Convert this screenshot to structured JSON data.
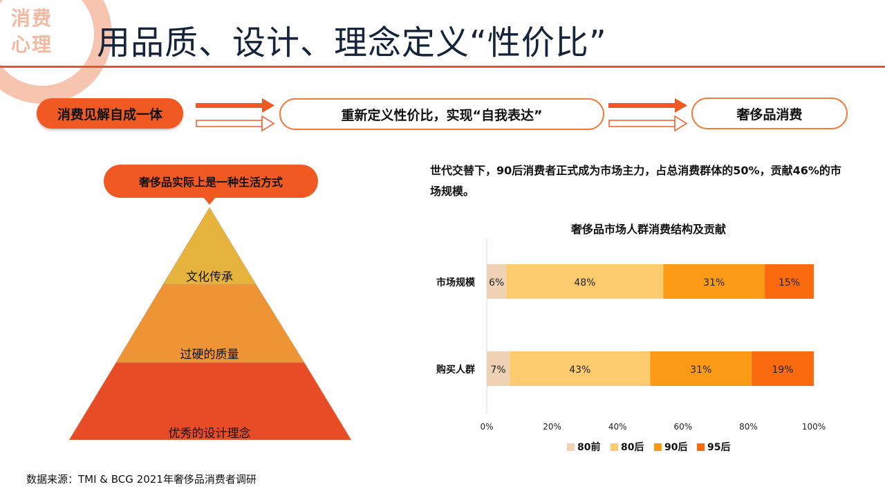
{
  "corner_badge": [
    "消费",
    "心理"
  ],
  "title": "用品质、设计、理念定义“性价比”",
  "flow": {
    "step1": "消费见解自成一体",
    "step2": "重新定义性价比，实现“自我表达”",
    "step3": "奢侈品消费"
  },
  "pyramid": {
    "bubble": "奢侈品实际上是一种生活方式",
    "layers": [
      "文化传承",
      "过硬的质量",
      "优秀的设计理念"
    ]
  },
  "description": "世代交替下，90后消费者正式成为市场主力，占总消费群体的50%，贡献46%的市场规模。",
  "source": "数据来源：TMI & BCG 2021年奢侈品消费者调研",
  "colors": {
    "accent": "#f05a22",
    "pyramid": [
      "#e6b43c",
      "#ef9434",
      "#e84c27"
    ],
    "series": [
      "#efd1b3",
      "#fccb6e",
      "#fb9a15",
      "#fa6a0e"
    ]
  },
  "chart_data": {
    "type": "bar",
    "orientation": "horizontal",
    "stacked": true,
    "title": "奢侈品市场人群消费结构及贡献",
    "categories": [
      "市场规模",
      "购买人群"
    ],
    "series": [
      {
        "name": "80前",
        "values": [
          6,
          7
        ]
      },
      {
        "name": "80后",
        "values": [
          48,
          43
        ]
      },
      {
        "name": "90后",
        "values": [
          31,
          31
        ]
      },
      {
        "name": "95后",
        "values": [
          15,
          19
        ]
      }
    ],
    "xlim": [
      0,
      100
    ],
    "x_ticks": [
      "0%",
      "20%",
      "40%",
      "60%",
      "80%",
      "100%"
    ],
    "data_label_suffix": "%",
    "legend": "bottom",
    "grid": false
  }
}
